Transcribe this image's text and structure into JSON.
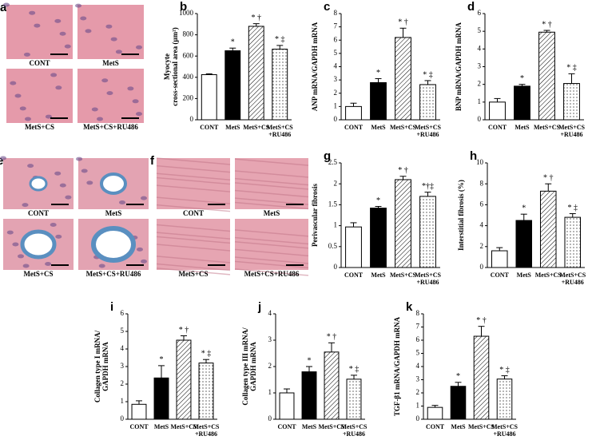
{
  "image_panels": [
    {
      "letter": "a",
      "captions": [
        "CONT",
        "MetS",
        "MetS+CS",
        "MetS+CS+RU486"
      ]
    },
    {
      "letter": "e",
      "captions": [
        "CONT",
        "MetS",
        "MetS+CS",
        "MetS+CS+RU486"
      ]
    },
    {
      "letter": "f",
      "captions": [
        "CONT",
        "MetS",
        "MetS+CS",
        "MetS+CS+RU486"
      ]
    }
  ],
  "chart_data": [
    {
      "type": "bar",
      "panel_label": "b",
      "ylabel": [
        "Myocyte",
        "cross-sectional area (µm²)"
      ],
      "categories": [
        "CONT",
        "MetS",
        "MetS+CS",
        [
          "MetS+CS",
          "+RU486"
        ]
      ],
      "values": [
        425,
        650,
        880,
        665
      ],
      "errors": [
        8,
        25,
        25,
        35
      ],
      "annotations": [
        null,
        "*",
        "* †",
        "* ‡"
      ],
      "patterns": [
        "none",
        "solid",
        "hatch",
        "dots"
      ],
      "ylim": [
        0,
        1000
      ],
      "yticks": [
        0,
        200,
        400,
        600,
        800,
        1000
      ]
    },
    {
      "type": "bar",
      "panel_label": "c",
      "ylabel": [
        "ANP mRNA/GAPDH mRNA"
      ],
      "categories": [
        "CONT",
        "MetS",
        "MetS+CS",
        [
          "MetS+CS",
          "+RU486"
        ]
      ],
      "values": [
        1.0,
        2.8,
        6.2,
        2.65
      ],
      "errors": [
        0.25,
        0.3,
        0.7,
        0.3
      ],
      "annotations": [
        null,
        "*",
        "* †",
        "* ‡"
      ],
      "patterns": [
        "none",
        "solid",
        "hatch",
        "dots"
      ],
      "ylim": [
        0,
        8
      ],
      "yticks": [
        0,
        1,
        2,
        3,
        4,
        5,
        6,
        7,
        8
      ]
    },
    {
      "type": "bar",
      "panel_label": "d",
      "ylabel": [
        "BNP mRNA/GAPDH mRNA"
      ],
      "categories": [
        "CONT",
        "MetS",
        "MetS+CS",
        [
          "MetS+CS",
          "+RU486"
        ]
      ],
      "values": [
        1.0,
        1.9,
        4.95,
        2.05
      ],
      "errors": [
        0.2,
        0.1,
        0.1,
        0.55
      ],
      "annotations": [
        null,
        "*",
        "* †",
        "* ‡"
      ],
      "patterns": [
        "none",
        "solid",
        "hatch",
        "dots"
      ],
      "ylim": [
        0,
        6
      ],
      "yticks": [
        0,
        1,
        2,
        3,
        4,
        5,
        6
      ]
    },
    {
      "type": "bar",
      "panel_label": "g",
      "ylabel": [
        "Perivascular fibrosis"
      ],
      "categories": [
        "CONT",
        "MetS",
        "MetS+CS",
        [
          "MetS+CS",
          "+RU486"
        ]
      ],
      "values": [
        0.97,
        1.42,
        2.1,
        1.7
      ],
      "errors": [
        0.1,
        0.04,
        0.08,
        0.1
      ],
      "annotations": [
        null,
        "*",
        "* †",
        "*†‡"
      ],
      "patterns": [
        "none",
        "solid",
        "hatch",
        "dots"
      ],
      "ylim": [
        0,
        2.5
      ],
      "yticks": [
        0,
        0.5,
        1,
        1.5,
        2,
        2.5
      ]
    },
    {
      "type": "bar",
      "panel_label": "h",
      "ylabel": [
        "Interstitial fibrosis (%)"
      ],
      "categories": [
        "CONT",
        "MetS",
        "MetS+CS",
        [
          "MetS+CS",
          "+RU486"
        ]
      ],
      "values": [
        1.6,
        4.5,
        7.3,
        4.8
      ],
      "errors": [
        0.3,
        0.6,
        0.7,
        0.35
      ],
      "annotations": [
        null,
        "*",
        "* †",
        "* ‡"
      ],
      "patterns": [
        "none",
        "solid",
        "hatch",
        "dots"
      ],
      "ylim": [
        0,
        10
      ],
      "yticks": [
        0,
        2,
        4,
        6,
        8,
        10
      ]
    },
    {
      "type": "bar",
      "panel_label": "i",
      "ylabel": [
        "Collagen type I mRNA/",
        "GAPDH mRNA"
      ],
      "categories": [
        "CONT",
        "MetS",
        "MetS+CS",
        [
          "MetS+CS",
          "+RU486"
        ]
      ],
      "values": [
        0.85,
        2.35,
        4.5,
        3.2
      ],
      "errors": [
        0.2,
        0.7,
        0.25,
        0.2
      ],
      "annotations": [
        null,
        "*",
        "* †",
        "* ‡"
      ],
      "patterns": [
        "none",
        "solid",
        "hatch",
        "dots"
      ],
      "ylim": [
        0,
        6
      ],
      "yticks": [
        0,
        1,
        2,
        3,
        4,
        5,
        6
      ]
    },
    {
      "type": "bar",
      "panel_label": "j",
      "ylabel": [
        "Collagen type III mRNA/",
        "GAPDH mRNA"
      ],
      "categories": [
        "CONT",
        "MetS",
        "MetS+CS",
        [
          "MetS+CS",
          "+RU486"
        ]
      ],
      "values": [
        1.0,
        1.8,
        2.55,
        1.52
      ],
      "errors": [
        0.15,
        0.2,
        0.35,
        0.15
      ],
      "annotations": [
        null,
        "*",
        "* †",
        "* ‡"
      ],
      "patterns": [
        "none",
        "solid",
        "hatch",
        "dots"
      ],
      "ylim": [
        0,
        4
      ],
      "yticks": [
        0,
        1,
        2,
        3,
        4
      ]
    },
    {
      "type": "bar",
      "panel_label": "k",
      "ylabel": [
        "TGF-β1 mRNA/GAPDH mRNA"
      ],
      "categories": [
        "CONT",
        "MetS",
        "MetS+CS",
        [
          "MetS+CS",
          "+RU486"
        ]
      ],
      "values": [
        0.9,
        2.5,
        6.3,
        3.05
      ],
      "errors": [
        0.15,
        0.3,
        0.75,
        0.25
      ],
      "annotations": [
        null,
        "*",
        "* †",
        "* ‡"
      ],
      "patterns": [
        "none",
        "solid",
        "hatch",
        "dots"
      ],
      "ylim": [
        0,
        8
      ],
      "yticks": [
        0,
        1,
        2,
        3,
        4,
        5,
        6,
        7,
        8
      ]
    }
  ]
}
